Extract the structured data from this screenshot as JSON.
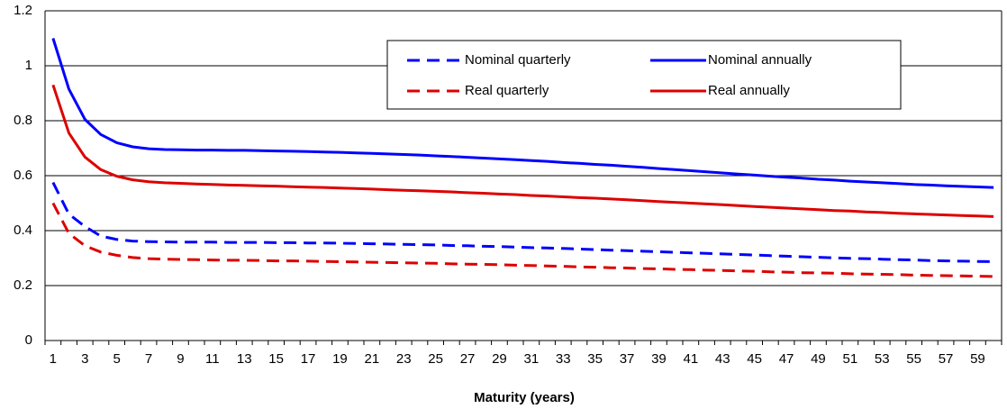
{
  "chart_data": {
    "type": "line",
    "x_label": "Maturity (years)",
    "categories": [
      1,
      null,
      3,
      null,
      5,
      null,
      7,
      null,
      9,
      null,
      11,
      null,
      13,
      null,
      15,
      null,
      17,
      null,
      19,
      null,
      21,
      null,
      23,
      null,
      25,
      null,
      27,
      null,
      29,
      null,
      31,
      null,
      33,
      null,
      35,
      null,
      37,
      null,
      39,
      null,
      41,
      null,
      43,
      null,
      45,
      null,
      47,
      null,
      49,
      null,
      51,
      null,
      53,
      null,
      55,
      null,
      57,
      null,
      59,
      null
    ],
    "series": [
      {
        "name": "Nominal quarterly",
        "color": "#0000ff",
        "style": "dashed",
        "values": [
          0.575,
          0.46,
          0.415,
          0.38,
          0.368,
          0.362,
          0.36,
          0.359,
          0.358,
          0.358,
          0.358,
          0.357,
          0.357,
          0.357,
          0.356,
          0.356,
          0.355,
          0.355,
          0.354,
          0.353,
          0.352,
          0.351,
          0.35,
          0.349,
          0.348,
          0.346,
          0.345,
          0.343,
          0.342,
          0.34,
          0.338,
          0.337,
          0.335,
          0.333,
          0.331,
          0.329,
          0.327,
          0.325,
          0.323,
          0.321,
          0.319,
          0.317,
          0.315,
          0.313,
          0.311,
          0.309,
          0.307,
          0.305,
          0.303,
          0.301,
          0.299,
          0.298,
          0.296,
          0.294,
          0.293,
          0.291,
          0.29,
          0.289,
          0.288,
          0.287
        ]
      },
      {
        "name": "Nominal annually",
        "color": "#0000ff",
        "style": "solid",
        "values": [
          1.1,
          0.915,
          0.805,
          0.75,
          0.72,
          0.705,
          0.698,
          0.695,
          0.694,
          0.693,
          0.693,
          0.692,
          0.692,
          0.691,
          0.69,
          0.689,
          0.688,
          0.686,
          0.685,
          0.683,
          0.681,
          0.679,
          0.677,
          0.675,
          0.672,
          0.67,
          0.667,
          0.664,
          0.661,
          0.658,
          0.655,
          0.652,
          0.648,
          0.645,
          0.641,
          0.638,
          0.634,
          0.63,
          0.626,
          0.622,
          0.618,
          0.614,
          0.61,
          0.606,
          0.602,
          0.598,
          0.594,
          0.591,
          0.587,
          0.584,
          0.58,
          0.577,
          0.574,
          0.571,
          0.568,
          0.566,
          0.563,
          0.561,
          0.559,
          0.557
        ]
      },
      {
        "name": "Real quarterly",
        "color": "#dd0000",
        "style": "dashed",
        "values": [
          0.5,
          0.39,
          0.345,
          0.322,
          0.31,
          0.302,
          0.298,
          0.296,
          0.295,
          0.294,
          0.293,
          0.292,
          0.292,
          0.291,
          0.29,
          0.29,
          0.289,
          0.288,
          0.287,
          0.286,
          0.285,
          0.284,
          0.283,
          0.282,
          0.281,
          0.279,
          0.278,
          0.277,
          0.276,
          0.274,
          0.273,
          0.271,
          0.27,
          0.268,
          0.267,
          0.265,
          0.264,
          0.262,
          0.261,
          0.259,
          0.258,
          0.256,
          0.255,
          0.253,
          0.252,
          0.25,
          0.249,
          0.247,
          0.246,
          0.245,
          0.243,
          0.242,
          0.241,
          0.24,
          0.238,
          0.237,
          0.236,
          0.235,
          0.234,
          0.233
        ]
      },
      {
        "name": "Real annually",
        "color": "#dd0000",
        "style": "solid",
        "values": [
          0.93,
          0.755,
          0.668,
          0.622,
          0.598,
          0.585,
          0.578,
          0.574,
          0.572,
          0.57,
          0.568,
          0.566,
          0.565,
          0.563,
          0.562,
          0.56,
          0.558,
          0.557,
          0.555,
          0.553,
          0.551,
          0.549,
          0.547,
          0.545,
          0.543,
          0.541,
          0.538,
          0.536,
          0.533,
          0.531,
          0.528,
          0.526,
          0.523,
          0.52,
          0.518,
          0.515,
          0.512,
          0.509,
          0.506,
          0.503,
          0.5,
          0.497,
          0.494,
          0.491,
          0.488,
          0.485,
          0.482,
          0.479,
          0.476,
          0.473,
          0.471,
          0.468,
          0.466,
          0.463,
          0.461,
          0.459,
          0.457,
          0.455,
          0.453,
          0.451
        ]
      }
    ],
    "ylim": [
      0,
      1.2
    ],
    "yticks": [
      0,
      0.2,
      0.4,
      0.6,
      0.8,
      1,
      1.2
    ],
    "grid": true,
    "legend": "top"
  }
}
